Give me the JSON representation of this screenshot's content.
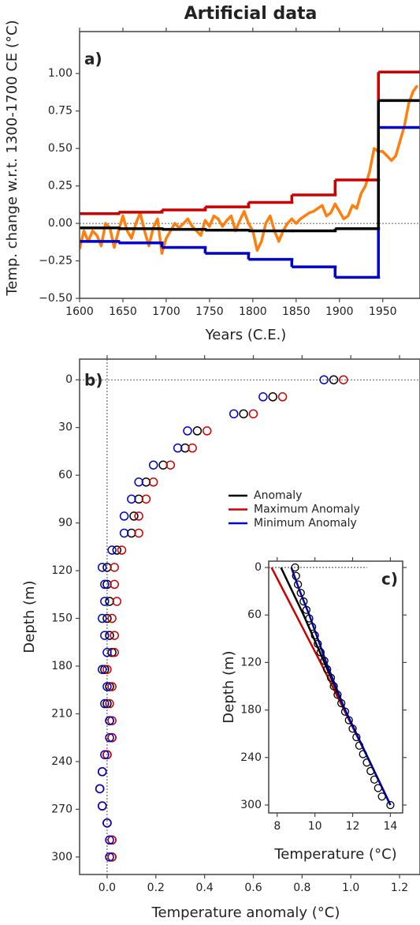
{
  "chart_data": [
    {
      "type": "line",
      "title": "Artificial data",
      "panel_label": "a)",
      "xlabel": "Years (C.E.)",
      "ylabel": "Temp. change w.r.t. 1300-1700 CE (°C)",
      "xlim": [
        1600,
        1993
      ],
      "ylim": [
        -0.5,
        1.28
      ],
      "xticks": [
        1600,
        1650,
        1700,
        1750,
        1800,
        1850,
        1900,
        1950
      ],
      "yticks": [
        {
          "value": -0.5,
          "label": "−0.50"
        },
        {
          "value": -0.25,
          "label": "−0.25"
        },
        {
          "value": 0,
          "label": "0.00"
        },
        {
          "value": 0.25,
          "label": "0.25"
        },
        {
          "value": 0.5,
          "label": "0.50"
        },
        {
          "value": 0.75,
          "label": "0.75"
        },
        {
          "value": 1.0,
          "label": "1.00"
        }
      ],
      "zero_line": true,
      "series": [
        {
          "color": "#ff7f0e",
          "drawstyle": "default",
          "x": [
            1600,
            1605,
            1610,
            1615,
            1620,
            1625,
            1630,
            1635,
            1640,
            1645,
            1650,
            1655,
            1660,
            1665,
            1670,
            1675,
            1680,
            1685,
            1690,
            1695,
            1700,
            1705,
            1710,
            1715,
            1720,
            1725,
            1730,
            1735,
            1740,
            1745,
            1750,
            1755,
            1760,
            1765,
            1770,
            1775,
            1780,
            1785,
            1790,
            1795,
            1800,
            1805,
            1810,
            1815,
            1820,
            1825,
            1830,
            1835,
            1840,
            1845,
            1850,
            1855,
            1860,
            1865,
            1870,
            1875,
            1880,
            1885,
            1890,
            1895,
            1900,
            1905,
            1910,
            1915,
            1920,
            1925,
            1930,
            1935,
            1940,
            1945,
            1950,
            1955,
            1960,
            1965,
            1970,
            1975,
            1980,
            1985,
            1990
          ],
          "values": [
            -0.17,
            -0.05,
            -0.12,
            -0.05,
            -0.08,
            -0.15,
            0.0,
            -0.03,
            -0.16,
            -0.05,
            0.05,
            -0.05,
            -0.1,
            0.0,
            0.07,
            -0.05,
            -0.15,
            -0.03,
            0.03,
            -0.2,
            -0.1,
            -0.05,
            0.0,
            -0.03,
            0.0,
            0.03,
            -0.02,
            -0.05,
            -0.08,
            0.02,
            -0.02,
            0.05,
            0.03,
            -0.02,
            0.02,
            0.05,
            -0.05,
            0.02,
            0.08,
            0.0,
            -0.05,
            -0.18,
            -0.12,
            0.0,
            0.05,
            -0.05,
            -0.12,
            -0.05,
            0.0,
            0.03,
            0.0,
            0.03,
            0.05,
            0.07,
            0.08,
            0.1,
            0.12,
            0.05,
            0.07,
            0.13,
            0.08,
            0.03,
            0.05,
            0.12,
            0.1,
            0.2,
            0.25,
            0.35,
            0.5,
            0.48,
            0.48,
            0.45,
            0.42,
            0.45,
            0.55,
            0.65,
            0.8,
            0.88,
            0.92
          ]
        },
        {
          "color": "#cc0000",
          "drawstyle": "steps-post",
          "x": [
            1600,
            1645,
            1695,
            1745,
            1795,
            1845,
            1895,
            1945
          ],
          "values": [
            0.065,
            0.075,
            0.09,
            0.11,
            0.14,
            0.19,
            0.29,
            1.01
          ]
        },
        {
          "color": "#0000cc",
          "drawstyle": "steps-post",
          "x": [
            1600,
            1645,
            1695,
            1745,
            1795,
            1845,
            1895,
            1945
          ],
          "values": [
            -0.12,
            -0.13,
            -0.16,
            -0.2,
            -0.24,
            -0.29,
            -0.36,
            0.64
          ]
        },
        {
          "color": "#000000",
          "drawstyle": "steps-post",
          "x": [
            1600,
            1645,
            1695,
            1745,
            1795,
            1845,
            1895,
            1945
          ],
          "values": [
            -0.03,
            -0.035,
            -0.04,
            -0.045,
            -0.05,
            -0.05,
            -0.035,
            0.82
          ]
        }
      ]
    },
    {
      "type": "scatter",
      "panel_label": "b)",
      "xlabel": "Temperature anomaly (°C)",
      "ylabel": "Depth (m)",
      "xlim": [
        -0.113,
        1.284
      ],
      "ylim": [
        -13,
        311
      ],
      "y_inverted": true,
      "xticks": [
        {
          "value": 0,
          "label": "0.0"
        },
        0.2,
        0.4,
        0.6,
        0.8,
        {
          "value": 1,
          "label": "1.0"
        },
        1.2
      ],
      "yticks": [
        0,
        30,
        60,
        90,
        120,
        150,
        180,
        210,
        240,
        270,
        300
      ],
      "zero_line": true,
      "depth": [
        0,
        10.7,
        21.4,
        32.1,
        42.9,
        53.6,
        64.3,
        75.0,
        85.7,
        96.4,
        107.1,
        117.9,
        128.6,
        139.3,
        150.0,
        160.7,
        171.4,
        182.1,
        192.9,
        203.6,
        214.3,
        225.0,
        235.7,
        246.4,
        257.1,
        267.9,
        278.6,
        289.3,
        300
      ],
      "series": [
        {
          "name": "Anomaly",
          "color": "#000000",
          "values": [
            0.93,
            0.68,
            0.56,
            0.37,
            0.32,
            0.23,
            0.16,
            0.13,
            0.11,
            0.1,
            0.04,
            0.0,
            0.0,
            0.01,
            0.0,
            0.01,
            0.02,
            -0.01,
            0.01,
            0.0,
            0.01,
            0.02,
            0.0,
            -0.02,
            -0.03,
            -0.02,
            0.0,
            0.02,
            0.02
          ]
        },
        {
          "name": "Maximum Anomaly",
          "color": "#cc0000",
          "values": [
            0.97,
            0.72,
            0.6,
            0.41,
            0.35,
            0.26,
            0.19,
            0.16,
            0.13,
            0.13,
            0.06,
            0.03,
            0.03,
            0.04,
            0.02,
            0.03,
            0.03,
            0.0,
            0.02,
            0.01,
            0.02,
            0.02,
            0.0,
            -0.02,
            -0.03,
            -0.02,
            0.0,
            0.02,
            0.02
          ]
        },
        {
          "name": "Minimum Anomaly",
          "color": "#0000cc",
          "values": [
            0.89,
            0.64,
            0.52,
            0.33,
            0.29,
            0.19,
            0.13,
            0.1,
            0.07,
            0.07,
            0.02,
            -0.02,
            -0.01,
            -0.01,
            -0.02,
            -0.01,
            0.0,
            -0.02,
            0.0,
            -0.01,
            0.01,
            0.01,
            -0.01,
            -0.02,
            -0.03,
            -0.02,
            0.0,
            0.01,
            0.01
          ]
        }
      ]
    },
    {
      "type": "line",
      "panel_label": "c)",
      "xlabel": "Temperature (°C)",
      "ylabel": "Depth (m)",
      "xlim": [
        7.55,
        14.65
      ],
      "ylim": [
        -8,
        310
      ],
      "y_inverted": true,
      "xticks": [
        8,
        10,
        12,
        14
      ],
      "yticks": [
        0,
        60,
        120,
        180,
        240,
        300
      ],
      "zero_line": true,
      "series": [
        {
          "color": "#cc0000",
          "depth": [
            0,
            30,
            60,
            120,
            180,
            240,
            300
          ],
          "values": [
            7.7,
            8.35,
            9.0,
            10.3,
            11.55,
            12.8,
            14.0
          ]
        },
        {
          "color": "#000000",
          "depth": [
            0,
            30,
            60,
            120,
            180,
            240,
            300
          ],
          "values": [
            8.2,
            8.8,
            9.4,
            10.5,
            11.6,
            12.8,
            14.0
          ]
        },
        {
          "color": "#0000cc",
          "depth": [
            0,
            30,
            60,
            120,
            180,
            240,
            300
          ],
          "values": [
            8.75,
            9.2,
            9.7,
            10.6,
            11.6,
            12.8,
            14.0
          ]
        },
        {
          "color": "#000000",
          "marker": "circle",
          "depth": [
            0,
            10.7,
            21.4,
            32.1,
            42.9,
            53.6,
            64.3,
            75.0,
            85.7,
            96.4,
            107.1,
            117.9,
            128.6,
            139.3,
            150.0,
            160.7,
            171.4,
            182.1,
            192.9,
            203.6,
            214.3,
            225.0,
            235.7,
            246.4,
            257.1,
            267.9,
            278.6,
            289.3,
            300
          ],
          "values": [
            8.95,
            9.0,
            9.1,
            9.25,
            9.4,
            9.55,
            9.7,
            9.85,
            10.0,
            10.15,
            10.3,
            10.5,
            10.65,
            10.85,
            11.0,
            11.2,
            11.4,
            11.6,
            11.8,
            12.0,
            12.2,
            12.35,
            12.55,
            12.75,
            12.95,
            13.15,
            13.35,
            13.55,
            14.0
          ]
        }
      ]
    }
  ]
}
